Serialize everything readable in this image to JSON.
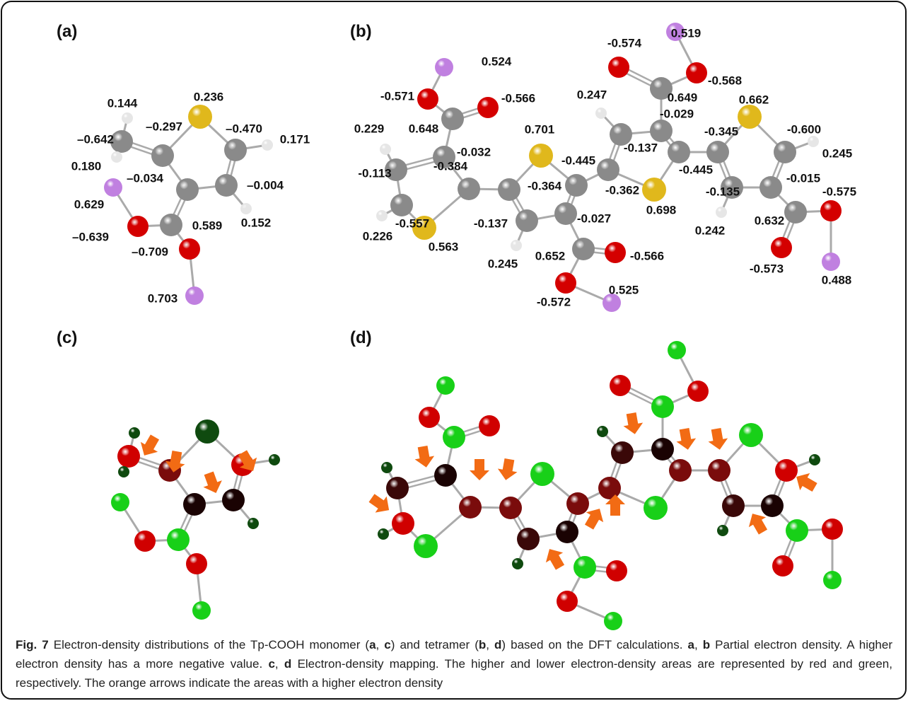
{
  "panels": [
    {
      "label": "(a)",
      "charges": [
        "0.144",
        "0.236",
        "–0.297",
        "–0.470",
        "–0.642",
        "0.171",
        "0.180",
        "–0.034",
        "–0.004",
        "0.629",
        "0.152",
        "0.589",
        "–0.639",
        "–0.709",
        "0.703"
      ]
    },
    {
      "label": "(b)",
      "charges": [
        "0.519",
        "-0.574",
        "0.524",
        "-0.568",
        "-0.571",
        "-0.566",
        "0.247",
        "0.649",
        "0.662",
        "-0.029",
        "0.229",
        "0.648",
        "0.701",
        "-0.345",
        "-0.600",
        "-0.032",
        "-0.445",
        "-0.137",
        "0.245",
        "-0.113",
        "-0.384",
        "-0.445",
        "-0.364",
        "-0.362",
        "-0.135",
        "-0.015",
        "-0.575",
        "0.698",
        "0.632",
        "0.226",
        "-0.557",
        "-0.137",
        "-0.027",
        "0.242",
        "0.563",
        "0.652",
        "-0.566",
        "0.245",
        "-0.573",
        "0.488",
        "-0.572",
        "0.525"
      ]
    },
    {
      "label": "(c)"
    },
    {
      "label": "(d)"
    }
  ],
  "caption": {
    "parts": [
      "Fig. 7",
      " Electron-density distributions of the Tp-COOH monomer (",
      "a",
      ", ",
      "c",
      ") and tetramer (",
      "b",
      ", ",
      "d",
      ") based on the DFT calculations. ",
      "a",
      ", ",
      "b",
      " Partial electron density. A higher electron density has a more negative value. ",
      "c",
      ", ",
      "d",
      " Electron-density mapping. The higher and lower electron-density areas are represented by red and green, respectively. The orange arrows indicate the areas with a higher electron density"
    ]
  }
}
